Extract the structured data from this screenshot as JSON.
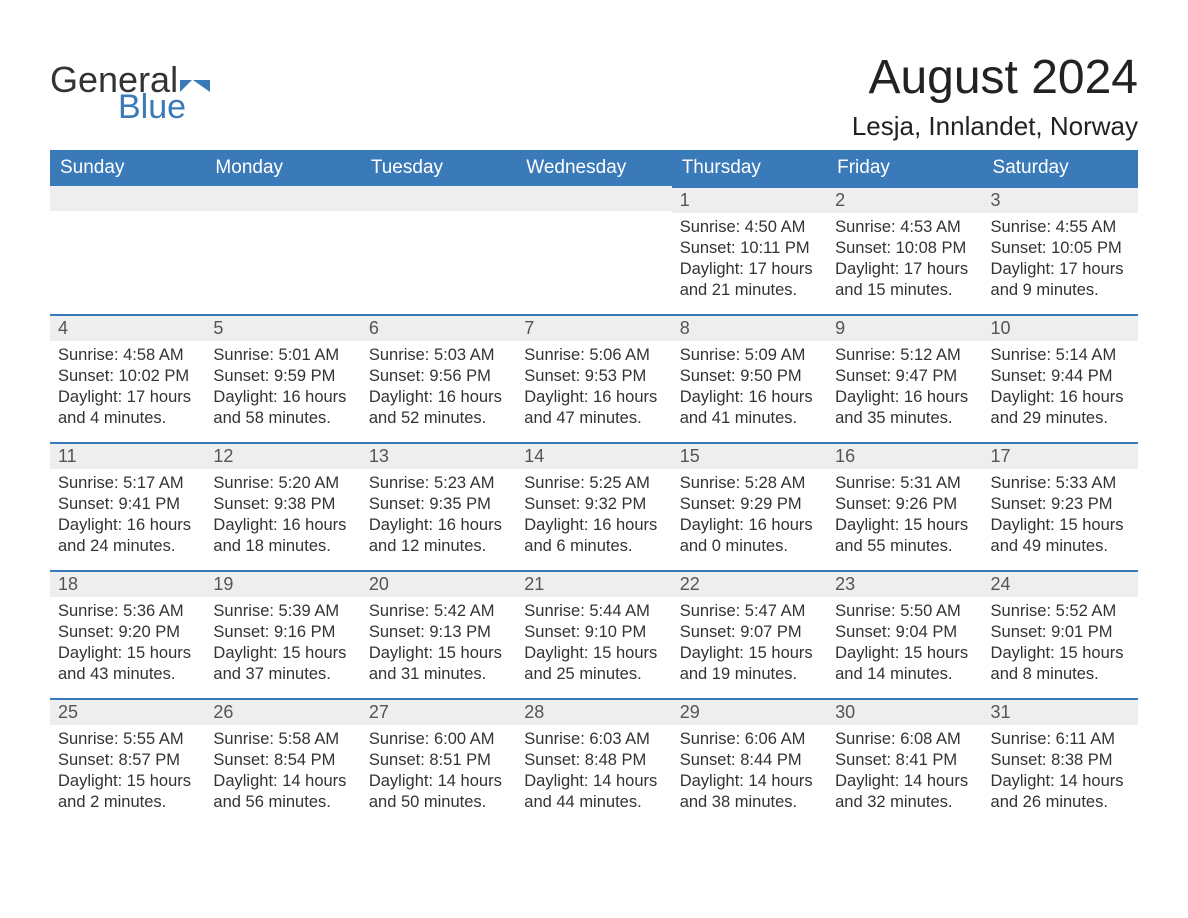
{
  "brand": {
    "part1": "General",
    "part2": "Blue",
    "flag_color": "#3a7ab8"
  },
  "title": "August 2024",
  "location": "Lesja, Innlandet, Norway",
  "colors": {
    "header_bg": "#3a7ab8",
    "header_text": "#ffffff",
    "daynum_bg": "#eeeeee",
    "daynum_border": "#3a7ab8",
    "page_bg": "#ffffff",
    "body_text": "#333333"
  },
  "weekdays": [
    "Sunday",
    "Monday",
    "Tuesday",
    "Wednesday",
    "Thursday",
    "Friday",
    "Saturday"
  ],
  "weeks": [
    [
      {
        "num": "",
        "sunrise": "",
        "sunset": "",
        "daylight": ""
      },
      {
        "num": "",
        "sunrise": "",
        "sunset": "",
        "daylight": ""
      },
      {
        "num": "",
        "sunrise": "",
        "sunset": "",
        "daylight": ""
      },
      {
        "num": "",
        "sunrise": "",
        "sunset": "",
        "daylight": ""
      },
      {
        "num": "1",
        "sunrise": "Sunrise: 4:50 AM",
        "sunset": "Sunset: 10:11 PM",
        "daylight": "Daylight: 17 hours and 21 minutes."
      },
      {
        "num": "2",
        "sunrise": "Sunrise: 4:53 AM",
        "sunset": "Sunset: 10:08 PM",
        "daylight": "Daylight: 17 hours and 15 minutes."
      },
      {
        "num": "3",
        "sunrise": "Sunrise: 4:55 AM",
        "sunset": "Sunset: 10:05 PM",
        "daylight": "Daylight: 17 hours and 9 minutes."
      }
    ],
    [
      {
        "num": "4",
        "sunrise": "Sunrise: 4:58 AM",
        "sunset": "Sunset: 10:02 PM",
        "daylight": "Daylight: 17 hours and 4 minutes."
      },
      {
        "num": "5",
        "sunrise": "Sunrise: 5:01 AM",
        "sunset": "Sunset: 9:59 PM",
        "daylight": "Daylight: 16 hours and 58 minutes."
      },
      {
        "num": "6",
        "sunrise": "Sunrise: 5:03 AM",
        "sunset": "Sunset: 9:56 PM",
        "daylight": "Daylight: 16 hours and 52 minutes."
      },
      {
        "num": "7",
        "sunrise": "Sunrise: 5:06 AM",
        "sunset": "Sunset: 9:53 PM",
        "daylight": "Daylight: 16 hours and 47 minutes."
      },
      {
        "num": "8",
        "sunrise": "Sunrise: 5:09 AM",
        "sunset": "Sunset: 9:50 PM",
        "daylight": "Daylight: 16 hours and 41 minutes."
      },
      {
        "num": "9",
        "sunrise": "Sunrise: 5:12 AM",
        "sunset": "Sunset: 9:47 PM",
        "daylight": "Daylight: 16 hours and 35 minutes."
      },
      {
        "num": "10",
        "sunrise": "Sunrise: 5:14 AM",
        "sunset": "Sunset: 9:44 PM",
        "daylight": "Daylight: 16 hours and 29 minutes."
      }
    ],
    [
      {
        "num": "11",
        "sunrise": "Sunrise: 5:17 AM",
        "sunset": "Sunset: 9:41 PM",
        "daylight": "Daylight: 16 hours and 24 minutes."
      },
      {
        "num": "12",
        "sunrise": "Sunrise: 5:20 AM",
        "sunset": "Sunset: 9:38 PM",
        "daylight": "Daylight: 16 hours and 18 minutes."
      },
      {
        "num": "13",
        "sunrise": "Sunrise: 5:23 AM",
        "sunset": "Sunset: 9:35 PM",
        "daylight": "Daylight: 16 hours and 12 minutes."
      },
      {
        "num": "14",
        "sunrise": "Sunrise: 5:25 AM",
        "sunset": "Sunset: 9:32 PM",
        "daylight": "Daylight: 16 hours and 6 minutes."
      },
      {
        "num": "15",
        "sunrise": "Sunrise: 5:28 AM",
        "sunset": "Sunset: 9:29 PM",
        "daylight": "Daylight: 16 hours and 0 minutes."
      },
      {
        "num": "16",
        "sunrise": "Sunrise: 5:31 AM",
        "sunset": "Sunset: 9:26 PM",
        "daylight": "Daylight: 15 hours and 55 minutes."
      },
      {
        "num": "17",
        "sunrise": "Sunrise: 5:33 AM",
        "sunset": "Sunset: 9:23 PM",
        "daylight": "Daylight: 15 hours and 49 minutes."
      }
    ],
    [
      {
        "num": "18",
        "sunrise": "Sunrise: 5:36 AM",
        "sunset": "Sunset: 9:20 PM",
        "daylight": "Daylight: 15 hours and 43 minutes."
      },
      {
        "num": "19",
        "sunrise": "Sunrise: 5:39 AM",
        "sunset": "Sunset: 9:16 PM",
        "daylight": "Daylight: 15 hours and 37 minutes."
      },
      {
        "num": "20",
        "sunrise": "Sunrise: 5:42 AM",
        "sunset": "Sunset: 9:13 PM",
        "daylight": "Daylight: 15 hours and 31 minutes."
      },
      {
        "num": "21",
        "sunrise": "Sunrise: 5:44 AM",
        "sunset": "Sunset: 9:10 PM",
        "daylight": "Daylight: 15 hours and 25 minutes."
      },
      {
        "num": "22",
        "sunrise": "Sunrise: 5:47 AM",
        "sunset": "Sunset: 9:07 PM",
        "daylight": "Daylight: 15 hours and 19 minutes."
      },
      {
        "num": "23",
        "sunrise": "Sunrise: 5:50 AM",
        "sunset": "Sunset: 9:04 PM",
        "daylight": "Daylight: 15 hours and 14 minutes."
      },
      {
        "num": "24",
        "sunrise": "Sunrise: 5:52 AM",
        "sunset": "Sunset: 9:01 PM",
        "daylight": "Daylight: 15 hours and 8 minutes."
      }
    ],
    [
      {
        "num": "25",
        "sunrise": "Sunrise: 5:55 AM",
        "sunset": "Sunset: 8:57 PM",
        "daylight": "Daylight: 15 hours and 2 minutes."
      },
      {
        "num": "26",
        "sunrise": "Sunrise: 5:58 AM",
        "sunset": "Sunset: 8:54 PM",
        "daylight": "Daylight: 14 hours and 56 minutes."
      },
      {
        "num": "27",
        "sunrise": "Sunrise: 6:00 AM",
        "sunset": "Sunset: 8:51 PM",
        "daylight": "Daylight: 14 hours and 50 minutes."
      },
      {
        "num": "28",
        "sunrise": "Sunrise: 6:03 AM",
        "sunset": "Sunset: 8:48 PM",
        "daylight": "Daylight: 14 hours and 44 minutes."
      },
      {
        "num": "29",
        "sunrise": "Sunrise: 6:06 AM",
        "sunset": "Sunset: 8:44 PM",
        "daylight": "Daylight: 14 hours and 38 minutes."
      },
      {
        "num": "30",
        "sunrise": "Sunrise: 6:08 AM",
        "sunset": "Sunset: 8:41 PM",
        "daylight": "Daylight: 14 hours and 32 minutes."
      },
      {
        "num": "31",
        "sunrise": "Sunrise: 6:11 AM",
        "sunset": "Sunset: 8:38 PM",
        "daylight": "Daylight: 14 hours and 26 minutes."
      }
    ]
  ]
}
